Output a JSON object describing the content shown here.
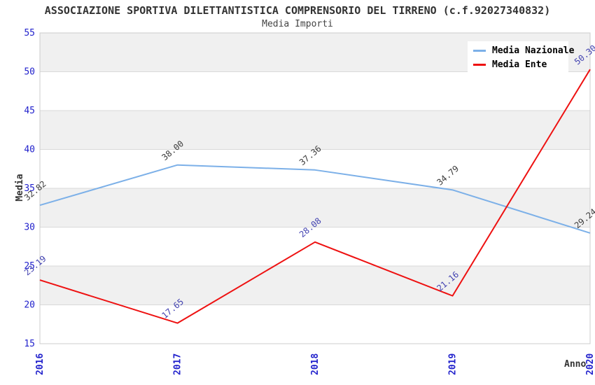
{
  "title": "ASSOCIAZIONE SPORTIVA DILETTANTISTICA COMPRENSORIO DEL TIRRENO (c.f.92027340832)",
  "subtitle": "Media Importi",
  "chart_data": {
    "type": "line",
    "categories": [
      "2016",
      "2017",
      "2018",
      "2019",
      "2020"
    ],
    "series": [
      {
        "name": "Media Nazionale",
        "color": "#7cb0e8",
        "label_color": "#3a3a3a",
        "values": [
          32.82,
          38.0,
          37.36,
          34.79,
          29.24
        ]
      },
      {
        "name": "Media Ente",
        "color": "#ee1111",
        "label_color": "#4141b0",
        "values": [
          23.19,
          17.65,
          28.08,
          21.16,
          50.3
        ]
      }
    ],
    "xlabel": "Anno",
    "ylabel": "Media",
    "y_ticks": [
      15,
      20,
      25,
      30,
      35,
      40,
      45,
      50,
      55
    ],
    "ylim": [
      15,
      55
    ],
    "grid": "horizontal-bands-alternating",
    "band_color": "#f0f0f0",
    "gridline_color": "#d9d9d9",
    "plot_border_color": "#cccccc",
    "axis_tick_label_color": "#2222cc",
    "legend_position": "top-right",
    "data_labels": true,
    "data_label_rotation_deg": -40
  }
}
